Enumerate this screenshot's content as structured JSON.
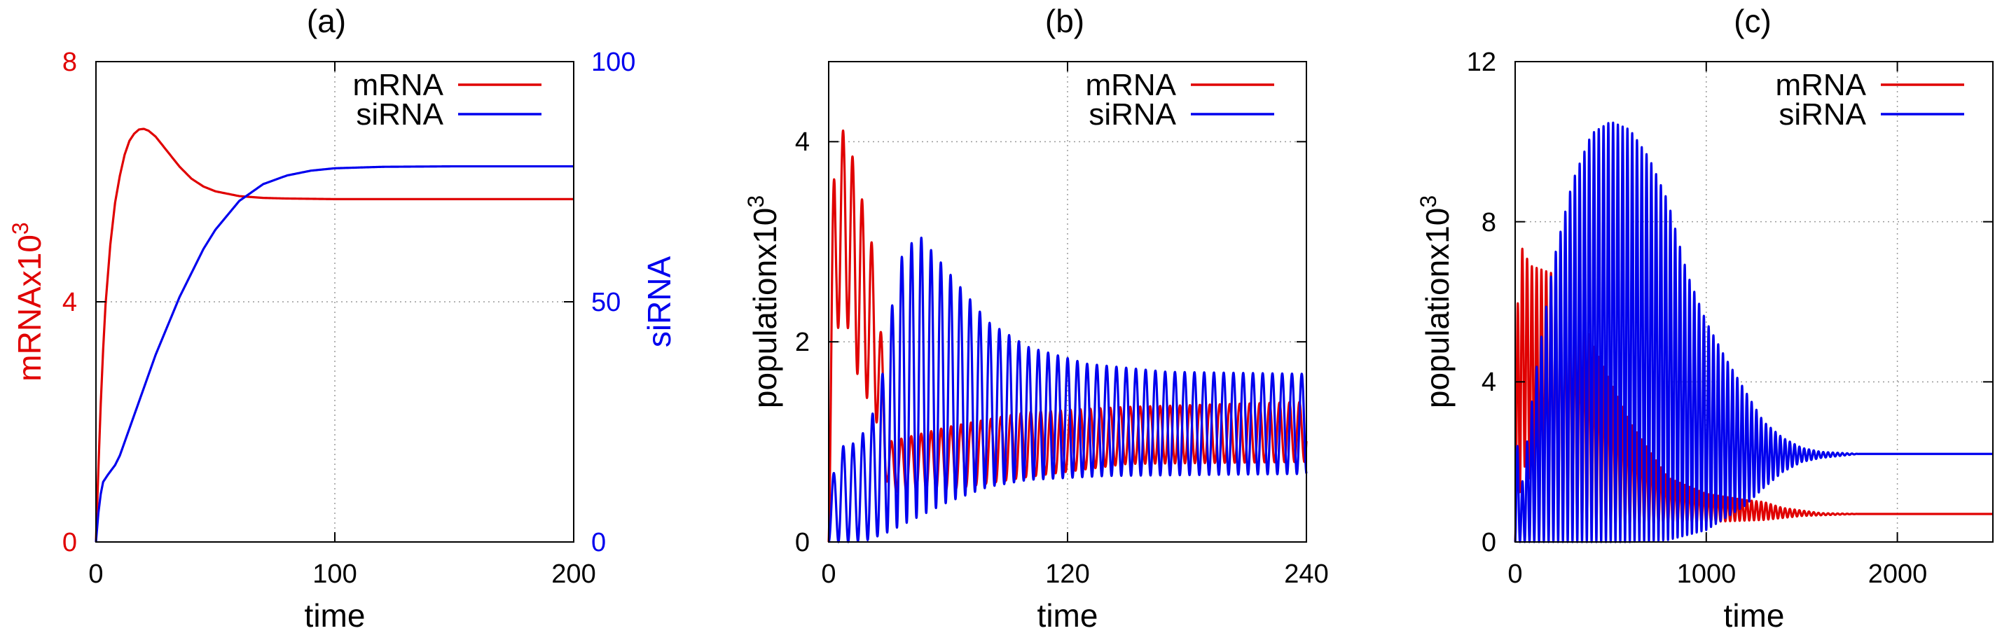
{
  "colors": {
    "mrna": "#e00000",
    "sirna": "#0000ee",
    "axis": "#000000",
    "grid": "#9a9a9a"
  },
  "chart_data": [
    {
      "type": "line",
      "title": "(a)",
      "xlabel": "time",
      "ylabel": "mRNAx10",
      "ylabel_sup": "3",
      "ylabel_right": "siRNA",
      "xlim": [
        0,
        200
      ],
      "ylim": [
        0,
        8
      ],
      "ylim_right": [
        0,
        100
      ],
      "xticks": [
        "0",
        "100",
        "200"
      ],
      "yticks": [
        "0",
        "4",
        "8"
      ],
      "yticks_right": [
        "0",
        "50",
        "100"
      ],
      "grid": true,
      "legend": "top-right",
      "series": [
        {
          "name": "mRNA",
          "axis": "left",
          "color": "mrna",
          "points": [
            [
              0,
              0
            ],
            [
              1,
              1.2
            ],
            [
              2,
              2.3
            ],
            [
              3,
              3.2
            ],
            [
              4,
              3.95
            ],
            [
              6,
              4.95
            ],
            [
              8,
              5.65
            ],
            [
              10,
              6.1
            ],
            [
              12,
              6.45
            ],
            [
              14,
              6.68
            ],
            [
              16,
              6.8
            ],
            [
              18,
              6.87
            ],
            [
              20,
              6.88
            ],
            [
              22,
              6.85
            ],
            [
              25,
              6.75
            ],
            [
              30,
              6.5
            ],
            [
              35,
              6.25
            ],
            [
              40,
              6.05
            ],
            [
              45,
              5.92
            ],
            [
              50,
              5.84
            ],
            [
              60,
              5.76
            ],
            [
              70,
              5.73
            ],
            [
              80,
              5.72
            ],
            [
              100,
              5.71
            ],
            [
              150,
              5.71
            ],
            [
              200,
              5.71
            ]
          ]
        },
        {
          "name": "siRNA",
          "axis": "right",
          "color": "sirna",
          "points": [
            [
              0,
              0
            ],
            [
              1,
              6
            ],
            [
              2,
              10
            ],
            [
              3,
              12.5
            ],
            [
              5,
              14
            ],
            [
              8,
              16
            ],
            [
              10,
              18
            ],
            [
              15,
              25
            ],
            [
              20,
              32
            ],
            [
              25,
              39
            ],
            [
              30,
              45
            ],
            [
              35,
              51
            ],
            [
              40,
              56
            ],
            [
              45,
              61
            ],
            [
              50,
              65
            ],
            [
              55,
              68
            ],
            [
              60,
              71
            ],
            [
              70,
              74.5
            ],
            [
              80,
              76.3
            ],
            [
              90,
              77.3
            ],
            [
              100,
              77.8
            ],
            [
              120,
              78.1
            ],
            [
              150,
              78.2
            ],
            [
              200,
              78.2
            ]
          ]
        }
      ]
    },
    {
      "type": "line",
      "title": "(b)",
      "xlabel": "time",
      "ylabel": "populationx10",
      "ylabel_sup": "3",
      "xlim": [
        0,
        240
      ],
      "ylim": [
        0,
        4.8
      ],
      "xticks": [
        "0",
        "120",
        "240"
      ],
      "yticks": [
        "0",
        "2",
        "4"
      ],
      "grid": true,
      "legend": "top-right",
      "series": [
        {
          "name": "mRNA",
          "color": "mrna",
          "oscillation": {
            "t_end": 240,
            "phase1": {
              "t_end": 24,
              "period": 4.8,
              "max": [
                [
                  0,
                  2.0
                ],
                [
                  3,
                  3.9
                ],
                [
                  8,
                  4.15
                ],
                [
                  14,
                  3.7
                ],
                [
                  19,
                  3.2
                ],
                [
                  24,
                  2.8
                ]
              ],
              "min": [
                [
                  0,
                  0.0
                ],
                [
                  4,
                  2.1
                ],
                [
                  8,
                  2.3
                ],
                [
                  14,
                  1.7
                ],
                [
                  19,
                  1.45
                ],
                [
                  24,
                  1.2
                ]
              ]
            },
            "phase2": {
              "t_start": 24,
              "period": 5.0,
              "max": [
                [
                  24,
                  2.8
                ],
                [
                  30,
                  1.0
                ],
                [
                  60,
                  1.15
                ],
                [
                  100,
                  1.3
                ],
                [
                  150,
                  1.35
                ],
                [
                  240,
                  1.4
                ]
              ],
              "min": [
                [
                  24,
                  1.2
                ],
                [
                  30,
                  0.5
                ],
                [
                  60,
                  0.52
                ],
                [
                  100,
                  0.65
                ],
                [
                  150,
                  0.78
                ],
                [
                  240,
                  0.8
                ]
              ]
            }
          }
        },
        {
          "name": "siRNA",
          "color": "sirna",
          "oscillation": {
            "t_end": 240,
            "period": 4.9,
            "max": [
              [
                0,
                0.5
              ],
              [
                6,
                0.95
              ],
              [
                15,
                1.0
              ],
              [
                25,
                1.4
              ],
              [
                35,
                2.8
              ],
              [
                45,
                3.08
              ],
              [
                60,
                2.7
              ],
              [
                80,
                2.2
              ],
              [
                100,
                1.95
              ],
              [
                130,
                1.78
              ],
              [
                170,
                1.7
              ],
              [
                240,
                1.68
              ]
            ],
            "min": [
              [
                0,
                0.0
              ],
              [
                10,
                0.0
              ],
              [
                20,
                0.02
              ],
              [
                30,
                0.1
              ],
              [
                45,
                0.25
              ],
              [
                60,
                0.4
              ],
              [
                80,
                0.55
              ],
              [
                100,
                0.62
              ],
              [
                140,
                0.66
              ],
              [
                240,
                0.68
              ]
            ]
          }
        }
      ]
    },
    {
      "type": "line",
      "title": "(c)",
      "xlabel": "time",
      "ylabel": "populationx10",
      "ylabel_sup": "3",
      "xlim": [
        0,
        2500
      ],
      "ylim": [
        0,
        12
      ],
      "xticks": [
        "0",
        "1000",
        "2000"
      ],
      "yticks": [
        "0",
        "4",
        "8",
        "12"
      ],
      "grid": true,
      "legend": "top-right",
      "series": [
        {
          "name": "mRNA",
          "color": "mrna",
          "oscillation": {
            "t_end": 2500,
            "period": 25,
            "max": [
              [
                0,
                3.0
              ],
              [
                20,
                7.5
              ],
              [
                80,
                6.9
              ],
              [
                200,
                6.7
              ],
              [
                300,
                6.5
              ],
              [
                400,
                5.0
              ],
              [
                600,
                3.0
              ],
              [
                800,
                1.6
              ],
              [
                1000,
                1.2
              ],
              [
                1200,
                1.05
              ],
              [
                1300,
                1.0
              ],
              [
                1400,
                0.85
              ],
              [
                1600,
                0.72
              ],
              [
                1800,
                0.7
              ],
              [
                2500,
                0.7
              ]
            ],
            "min": [
              [
                0,
                0.0
              ],
              [
                40,
                2.0
              ],
              [
                100,
                1.3
              ],
              [
                200,
                0.6
              ],
              [
                400,
                0.45
              ],
              [
                700,
                0.45
              ],
              [
                1000,
                0.5
              ],
              [
                1300,
                0.55
              ],
              [
                1500,
                0.65
              ],
              [
                1800,
                0.7
              ],
              [
                2500,
                0.7
              ]
            ]
          }
        },
        {
          "name": "siRNA",
          "color": "sirna",
          "oscillation": {
            "t_end": 2500,
            "period": 25,
            "max": [
              [
                0,
                3.2
              ],
              [
                30,
                1.2
              ],
              [
                100,
                4.0
              ],
              [
                200,
                7.0
              ],
              [
                300,
                9.0
              ],
              [
                400,
                10.2
              ],
              [
                500,
                10.5
              ],
              [
                600,
                10.3
              ],
              [
                700,
                9.6
              ],
              [
                800,
                8.5
              ],
              [
                900,
                6.7
              ],
              [
                1000,
                5.5
              ],
              [
                1100,
                4.6
              ],
              [
                1200,
                3.8
              ],
              [
                1300,
                3.0
              ],
              [
                1400,
                2.6
              ],
              [
                1500,
                2.35
              ],
              [
                1600,
                2.25
              ],
              [
                1800,
                2.2
              ],
              [
                2500,
                2.2
              ]
            ],
            "min": [
              [
                0,
                0.0
              ],
              [
                50,
                0.0
              ],
              [
                300,
                0.0
              ],
              [
                600,
                0.0
              ],
              [
                800,
                0.05
              ],
              [
                1000,
                0.3
              ],
              [
                1200,
                0.9
              ],
              [
                1300,
                1.35
              ],
              [
                1400,
                1.75
              ],
              [
                1500,
                2.0
              ],
              [
                1600,
                2.1
              ],
              [
                1800,
                2.2
              ],
              [
                2500,
                2.2
              ]
            ]
          }
        }
      ]
    }
  ]
}
